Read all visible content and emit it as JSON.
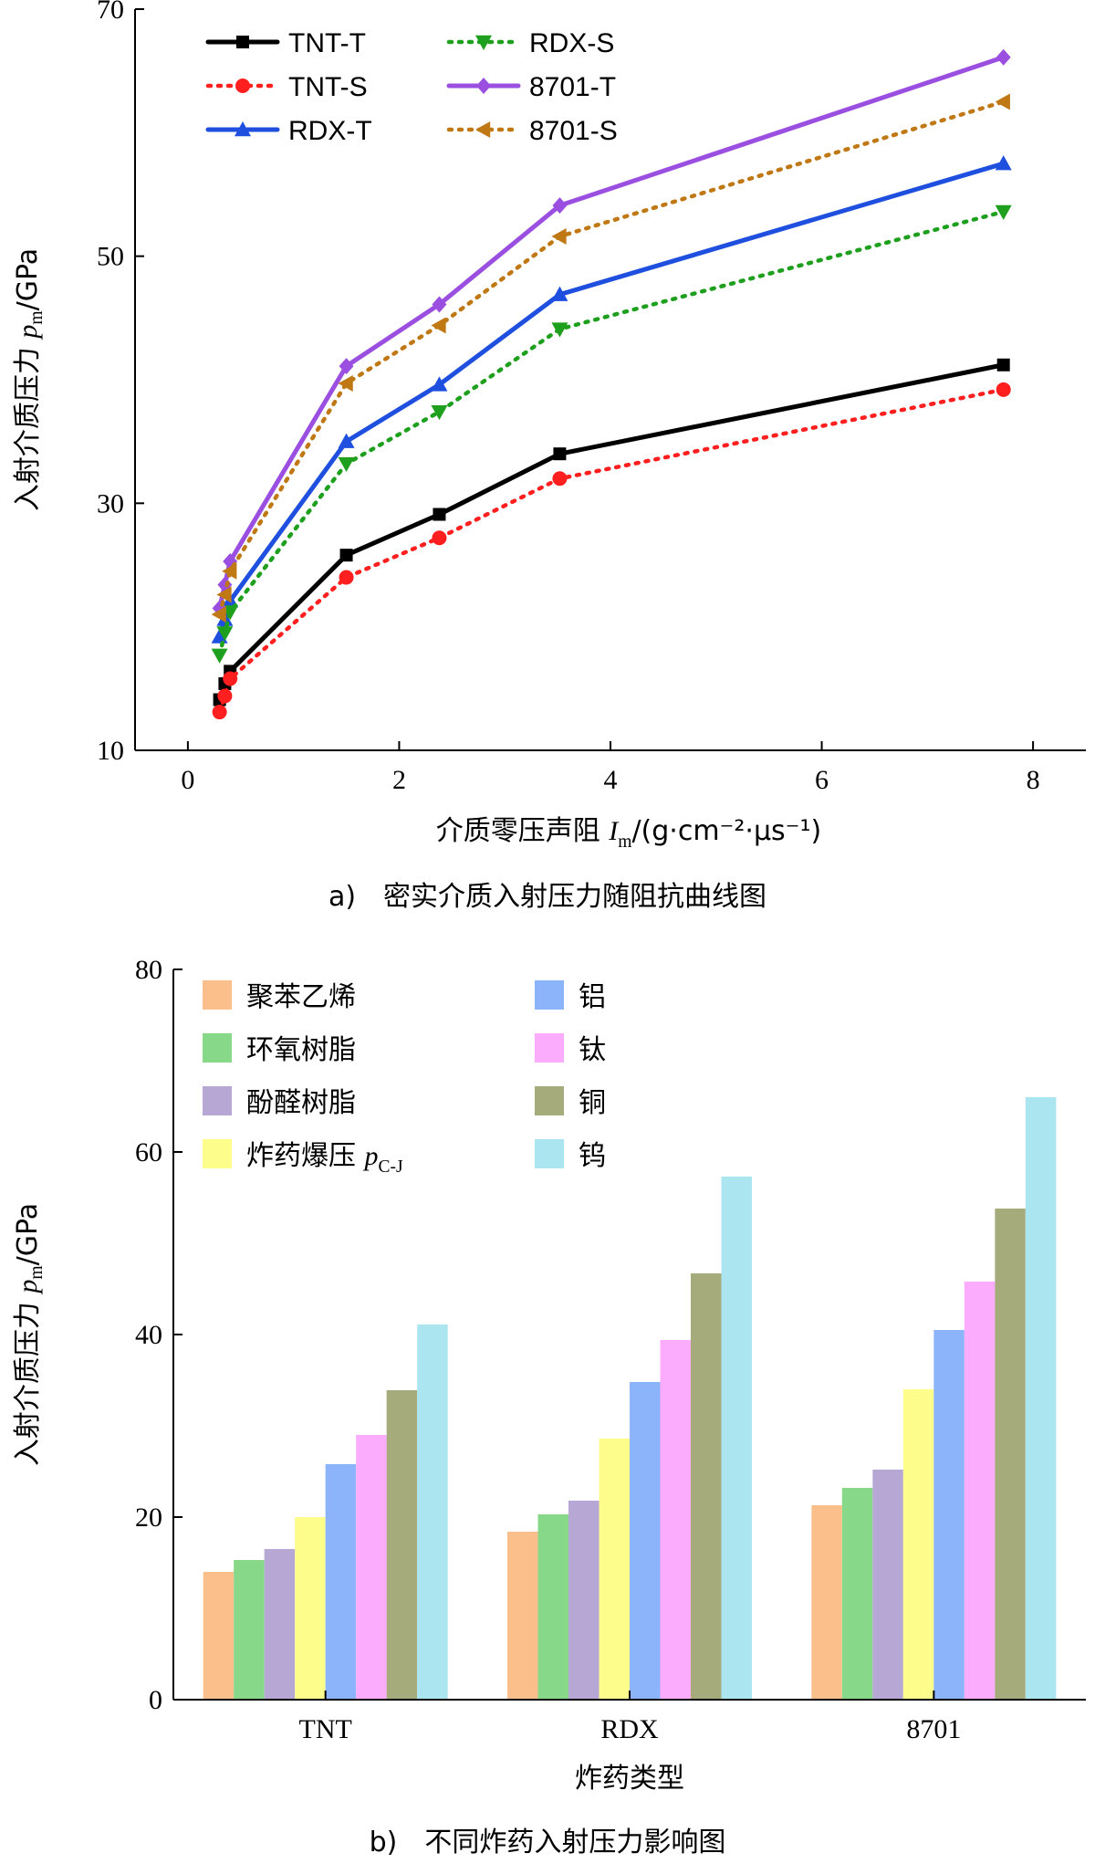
{
  "chart_data": [
    {
      "type": "line",
      "caption": "a)　密实介质入射压力随阻抗曲线图",
      "ylabel": "入射介质压力 p_m/GPa",
      "xlabel": "介质零压声阻 I_m/(g·cm⁻²·μs⁻¹)",
      "xlim": [
        -0.5,
        8.5
      ],
      "ylim": [
        10,
        70
      ],
      "xticks": [
        0,
        2,
        4,
        6,
        8
      ],
      "yticks": [
        10,
        30,
        50,
        70
      ],
      "grid": false,
      "legend_position": "top-left",
      "x": [
        0.3,
        0.35,
        0.4,
        1.5,
        2.38,
        3.52,
        7.72
      ],
      "series": [
        {
          "name": "TNT-T",
          "color": "#000000",
          "dash": "solid",
          "marker": "square",
          "values": [
            14.1,
            15.4,
            16.4,
            25.8,
            29.1,
            34.0,
            41.2
          ]
        },
        {
          "name": "TNT-S",
          "color": "#ff1f1f",
          "dash": "dotted",
          "marker": "circle",
          "values": [
            13.1,
            14.4,
            15.8,
            24.0,
            27.2,
            32.0,
            39.2
          ]
        },
        {
          "name": "RDX-T",
          "color": "#1f4fdf",
          "dash": "solid",
          "marker": "triangle-up",
          "values": [
            19.2,
            20.6,
            22.1,
            35.0,
            39.6,
            46.9,
            57.5
          ]
        },
        {
          "name": "RDX-S",
          "color": "#1ea01e",
          "dash": "dotted",
          "marker": "triangle-down",
          "values": [
            17.7,
            19.5,
            21.2,
            33.2,
            37.4,
            44.1,
            53.6
          ]
        },
        {
          "name": "8701-T",
          "color": "#9b4fe0",
          "dash": "solid",
          "marker": "diamond",
          "values": [
            21.5,
            23.4,
            25.3,
            41.1,
            46.1,
            54.1,
            66.1
          ]
        },
        {
          "name": "8701-S",
          "color": "#c07814",
          "dash": "dotted",
          "marker": "triangle-left",
          "values": [
            21.0,
            22.6,
            24.5,
            39.7,
            44.4,
            51.6,
            62.5
          ]
        }
      ]
    },
    {
      "type": "bar",
      "caption": "b)　不同炸药入射压力影响图",
      "ylabel": "入射介质压力 p_m/GPa",
      "xlabel": "炸药类型",
      "ylim": [
        0,
        80
      ],
      "yticks": [
        0,
        20,
        40,
        60,
        80
      ],
      "grid": false,
      "legend_position": "top-left",
      "categories": [
        "TNT",
        "RDX",
        "8701"
      ],
      "series": [
        {
          "name": "聚苯乙烯",
          "color": "#fbbf8c",
          "values": [
            14.0,
            18.4,
            21.3
          ]
        },
        {
          "name": "环氧树脂",
          "color": "#87d889",
          "values": [
            15.3,
            20.3,
            23.2
          ]
        },
        {
          "name": "酚醛树脂",
          "color": "#b6a7d5",
          "values": [
            16.5,
            21.8,
            25.2
          ]
        },
        {
          "name": "炸药爆压 p_C-J",
          "color": "#fdfd8c",
          "values": [
            20.0,
            28.6,
            34.0
          ]
        },
        {
          "name": "铝",
          "color": "#8cb4fa",
          "values": [
            25.8,
            34.8,
            40.5
          ]
        },
        {
          "name": "钛",
          "color": "#fcacfc",
          "values": [
            29.0,
            39.4,
            45.8
          ]
        },
        {
          "name": "铜",
          "color": "#a6ab7c",
          "values": [
            33.9,
            46.7,
            53.8
          ]
        },
        {
          "name": "钨",
          "color": "#abe5f0",
          "values": [
            41.1,
            57.3,
            66.0
          ]
        }
      ]
    }
  ]
}
